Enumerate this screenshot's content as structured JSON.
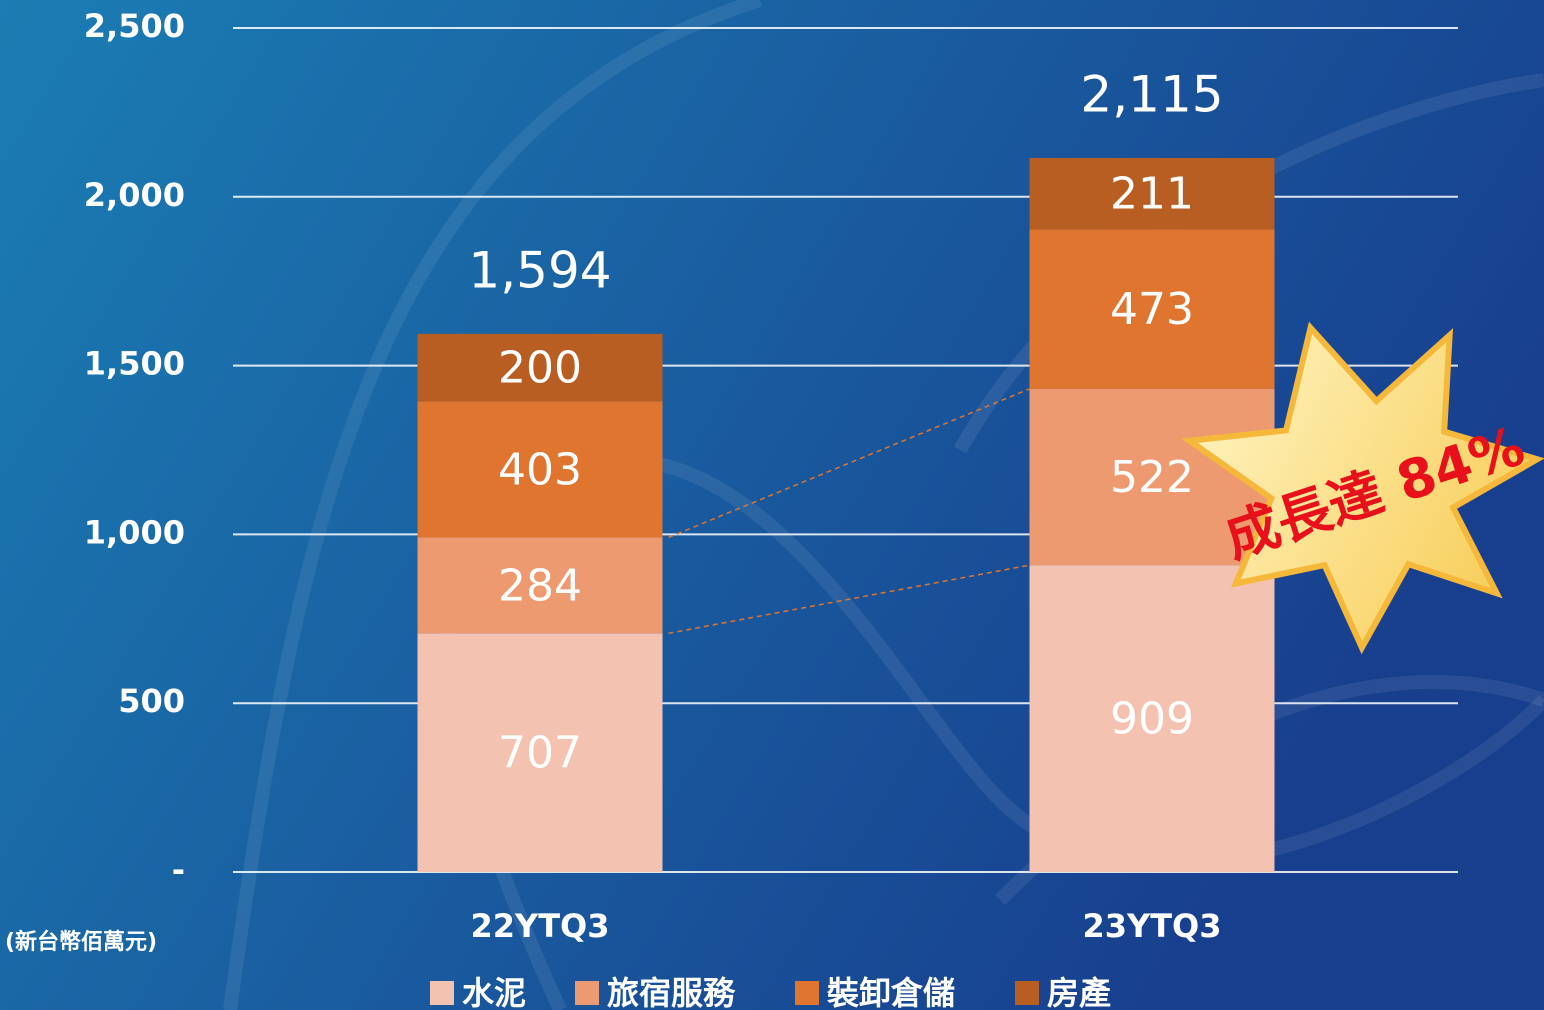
{
  "chart_data": {
    "type": "stacked_bar",
    "categories": [
      "22YTQ3",
      "23YTQ3"
    ],
    "series": [
      {
        "name": "水泥",
        "color": "#f4c2b0",
        "values": [
          707,
          909
        ]
      },
      {
        "name": "旅宿服務",
        "color": "#ee9a70",
        "values": [
          284,
          522
        ]
      },
      {
        "name": "裝卸倉儲",
        "color": "#e07530",
        "values": [
          403,
          473
        ]
      },
      {
        "name": "房產",
        "color": "#b85e22",
        "values": [
          200,
          211
        ]
      }
    ],
    "totals": {
      "values": [
        1594,
        2115
      ],
      "value_labels": [
        "1,594",
        "2,115"
      ]
    },
    "ylim": [
      0,
      2500
    ],
    "yticks": [
      {
        "value": 0,
        "label": "-"
      },
      500,
      {
        "value": 1000,
        "label": "1,000"
      },
      {
        "value": 1500,
        "label": "1,500"
      },
      {
        "value": 2000,
        "label": "2,000"
      },
      {
        "value": 2500,
        "label": "2,500"
      }
    ],
    "grid": true,
    "unit_label": "(新台幣佰萬元)",
    "annotation": "成長達 84%"
  }
}
